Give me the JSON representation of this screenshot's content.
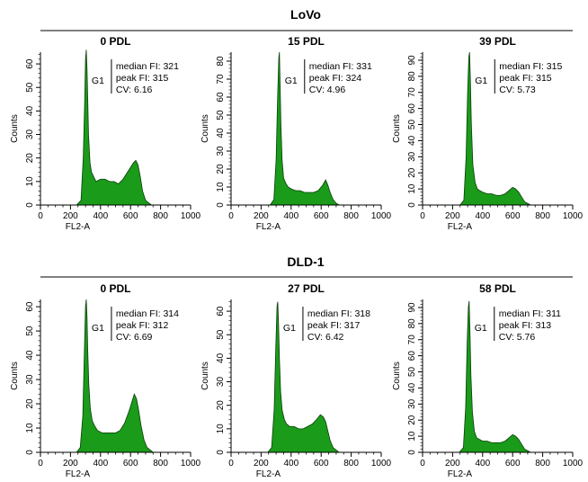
{
  "figure": {
    "groups": [
      {
        "title": "LoVo"
      },
      {
        "title": "DLD-1"
      }
    ]
  },
  "chart_data": [
    {
      "type": "area",
      "group": "LoVo",
      "title": "0 PDL",
      "xlabel": "FL2-A",
      "ylabel": "Counts",
      "xlim": [
        0,
        1000
      ],
      "ylim": [
        0,
        65
      ],
      "xticks": [
        0,
        200,
        400,
        600,
        800,
        1000
      ],
      "yticks": [
        0,
        10,
        20,
        30,
        40,
        50,
        60
      ],
      "gate_label": "G1",
      "stats": [
        "median FI: 321",
        "peak FI: 315",
        "CV: 6.16"
      ],
      "series": [
        {
          "color": "#1a9b1a",
          "x": [
            240,
            270,
            285,
            295,
            300,
            305,
            310,
            315,
            320,
            330,
            340,
            355,
            370,
            400,
            430,
            460,
            490,
            520,
            550,
            580,
            600,
            620,
            635,
            650,
            665,
            680,
            700,
            720,
            740
          ],
          "y": [
            0,
            2,
            20,
            45,
            62,
            66,
            58,
            45,
            30,
            18,
            14,
            12,
            10,
            11,
            11,
            10,
            10,
            9,
            11,
            14,
            16,
            18,
            19,
            17,
            12,
            6,
            2,
            1,
            0
          ]
        }
      ]
    },
    {
      "type": "area",
      "group": "LoVo",
      "title": "15 PDL",
      "xlabel": "FL2-A",
      "ylabel": "Counts",
      "xlim": [
        0,
        1000
      ],
      "ylim": [
        0,
        85
      ],
      "xticks": [
        0,
        200,
        400,
        600,
        800,
        1000
      ],
      "yticks": [
        0,
        10,
        20,
        30,
        40,
        50,
        60,
        70,
        80
      ],
      "gate_label": "G1",
      "stats": [
        "median FI: 331",
        "peak FI: 324",
        "CV: 4.96"
      ],
      "series": [
        {
          "color": "#1a9b1a",
          "x": [
            260,
            285,
            300,
            310,
            318,
            322,
            326,
            332,
            340,
            350,
            365,
            380,
            400,
            430,
            460,
            490,
            520,
            550,
            580,
            610,
            630,
            645,
            660,
            680,
            700,
            720
          ],
          "y": [
            0,
            3,
            25,
            60,
            82,
            85,
            70,
            45,
            25,
            15,
            12,
            10,
            9,
            8,
            8,
            7,
            7,
            7,
            8,
            11,
            14,
            11,
            7,
            3,
            1,
            0
          ]
        }
      ]
    },
    {
      "type": "area",
      "group": "LoVo",
      "title": "39 PDL",
      "xlabel": "FL2-A",
      "ylabel": "Counts",
      "xlim": [
        0,
        1000
      ],
      "ylim": [
        0,
        95
      ],
      "xticks": [
        0,
        200,
        400,
        600,
        800,
        1000
      ],
      "yticks": [
        0,
        10,
        20,
        30,
        40,
        50,
        60,
        70,
        80,
        90
      ],
      "gate_label": "G1",
      "stats": [
        "median FI: 315",
        "peak FI: 315",
        "CV: 5.73"
      ],
      "series": [
        {
          "color": "#1a9b1a",
          "x": [
            250,
            275,
            290,
            300,
            308,
            313,
            318,
            325,
            335,
            350,
            365,
            380,
            400,
            430,
            460,
            490,
            520,
            550,
            575,
            600,
            620,
            640,
            660,
            680,
            700,
            720
          ],
          "y": [
            0,
            3,
            30,
            70,
            92,
            95,
            80,
            50,
            25,
            14,
            10,
            9,
            8,
            7,
            7,
            6,
            6,
            7,
            9,
            11,
            10,
            8,
            5,
            2,
            1,
            0
          ]
        }
      ]
    },
    {
      "type": "area",
      "group": "DLD-1",
      "title": "0 PDL",
      "xlabel": "FL2-A",
      "ylabel": "Counts",
      "xlim": [
        0,
        1000
      ],
      "ylim": [
        0,
        63
      ],
      "xticks": [
        0,
        200,
        400,
        600,
        800,
        1000
      ],
      "yticks": [
        0,
        10,
        20,
        30,
        40,
        50,
        60
      ],
      "gate_label": "G1",
      "stats": [
        "median FI: 314",
        "peak FI: 312",
        "CV: 6.69"
      ],
      "series": [
        {
          "color": "#1a9b1a",
          "x": [
            240,
            265,
            282,
            292,
            300,
            305,
            310,
            315,
            322,
            332,
            345,
            360,
            380,
            410,
            440,
            470,
            500,
            530,
            560,
            590,
            610,
            625,
            640,
            655,
            670,
            690,
            710,
            730,
            750
          ],
          "y": [
            0,
            2,
            15,
            40,
            60,
            63,
            56,
            42,
            28,
            18,
            13,
            11,
            9,
            8,
            8,
            8,
            8,
            9,
            12,
            17,
            21,
            24,
            22,
            17,
            11,
            5,
            2,
            1,
            0
          ]
        }
      ]
    },
    {
      "type": "area",
      "group": "DLD-1",
      "title": "27 PDL",
      "xlabel": "FL2-A",
      "ylabel": "Counts",
      "xlim": [
        0,
        1000
      ],
      "ylim": [
        0,
        65
      ],
      "xticks": [
        0,
        200,
        400,
        600,
        800,
        1000
      ],
      "yticks": [
        0,
        10,
        20,
        30,
        40,
        50,
        60
      ],
      "gate_label": "G1",
      "stats": [
        "median FI: 318",
        "peak FI: 317",
        "CV: 6.42"
      ],
      "series": [
        {
          "color": "#1a9b1a",
          "x": [
            245,
            270,
            287,
            298,
            306,
            311,
            316,
            322,
            330,
            340,
            355,
            370,
            390,
            420,
            450,
            480,
            510,
            540,
            570,
            595,
            615,
            630,
            645,
            660,
            680,
            700,
            720
          ],
          "y": [
            0,
            2,
            18,
            45,
            62,
            64,
            55,
            40,
            26,
            18,
            14,
            12,
            11,
            11,
            10,
            10,
            11,
            12,
            14,
            16,
            15,
            13,
            9,
            5,
            2,
            1,
            0
          ]
        }
      ]
    },
    {
      "type": "area",
      "group": "DLD-1",
      "title": "58 PDL",
      "xlabel": "FL2-A",
      "ylabel": "Counts",
      "xlim": [
        0,
        1000
      ],
      "ylim": [
        0,
        95
      ],
      "xticks": [
        0,
        200,
        400,
        600,
        800,
        1000
      ],
      "yticks": [
        0,
        10,
        20,
        30,
        40,
        50,
        60,
        70,
        80,
        90
      ],
      "gate_label": "G1",
      "stats": [
        "median FI: 311",
        "peak FI: 313",
        "CV: 5.76"
      ],
      "series": [
        {
          "color": "#1a9b1a",
          "x": [
            245,
            272,
            287,
            297,
            305,
            310,
            315,
            322,
            332,
            345,
            360,
            380,
            400,
            430,
            460,
            490,
            520,
            550,
            575,
            600,
            620,
            640,
            660,
            680,
            700,
            720
          ],
          "y": [
            0,
            3,
            28,
            68,
            90,
            94,
            78,
            48,
            25,
            13,
            9,
            8,
            7,
            7,
            6,
            6,
            6,
            7,
            9,
            11,
            10,
            8,
            5,
            2,
            1,
            0
          ]
        }
      ]
    }
  ]
}
